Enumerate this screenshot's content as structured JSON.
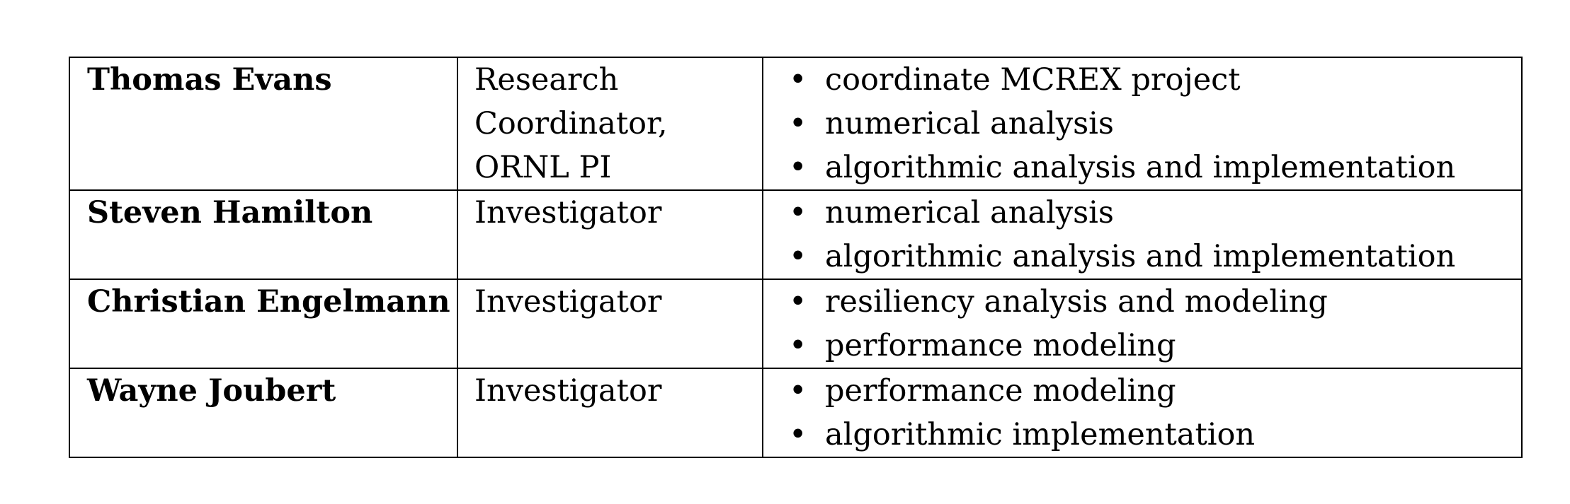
{
  "people": [
    {
      "name": "Thomas Evans",
      "role_lines": [
        "Research",
        "Coordinator,",
        "ORNL PI"
      ],
      "responsibilities": [
        "coordinate MCREX project",
        "numerical analysis",
        "algorithmic analysis and implementation"
      ]
    },
    {
      "name": "Steven Hamilton",
      "role_lines": [
        "Investigator"
      ],
      "responsibilities": [
        "numerical analysis",
        "algorithmic analysis and implementation"
      ]
    },
    {
      "name": "Christian Engelmann",
      "role_lines": [
        "Investigator"
      ],
      "responsibilities": [
        "resiliency analysis and modeling",
        "performance modeling"
      ]
    },
    {
      "name": "Wayne Joubert",
      "role_lines": [
        "Investigator"
      ],
      "responsibilities": [
        "performance modeling",
        "algorithmic implementation"
      ]
    }
  ],
  "bullet_glyph": "•"
}
